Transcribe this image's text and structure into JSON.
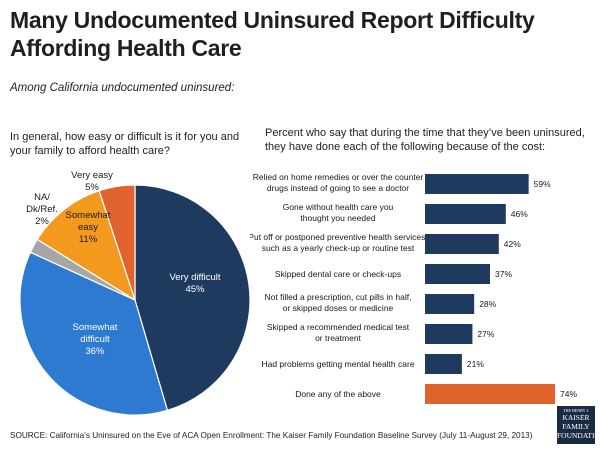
{
  "title": "Many Undocumented Uninsured Report Difficulty Affording Health Care",
  "subtitle": "Among California undocumented uninsured:",
  "source": "SOURCE: California’s Uninsured on the Eve of ACA Open Enrollment: The Kaiser Family Foundation Baseline Survey (July 11-August 29, 2013)",
  "logo": {
    "line0": "THE HENRY J.",
    "line1": "KAISER",
    "line2": "FAMILY",
    "line3": "FOUNDATION"
  },
  "colors": {
    "dark": "#1e3a5f",
    "orange": "#e0632e",
    "gold": "#f39a1e",
    "gray": "#a6a6a6",
    "blue": "#2e7ad1"
  },
  "chart_data": [
    {
      "type": "pie",
      "title": "In general, how easy or difficult is it for you and your family to afford health care?",
      "slices": [
        {
          "label": "Very difficult",
          "value": 45,
          "display": "45%",
          "color": "#1e3a5f"
        },
        {
          "label": "Somewhat difficult",
          "value": 36,
          "display": "36%",
          "color": "#2e7ad1"
        },
        {
          "label": "NA/ Dk/Ref.",
          "value": 2,
          "display": "2%",
          "color": "#a6a6a6"
        },
        {
          "label": "Somewhat easy",
          "value": 11,
          "display": "11%",
          "color": "#f39a1e"
        },
        {
          "label": "Very easy",
          "value": 5,
          "display": "5%",
          "color": "#e0632e"
        }
      ]
    },
    {
      "type": "bar",
      "orientation": "horizontal",
      "title": "Percent who say that during the time that they’ve been uninsured, they have done each of the following because of the cost:",
      "xlim": [
        0,
        100
      ],
      "categories": [
        "Relied on home remedies or over the counter drugs instead of going to see a doctor",
        "Gone without health care you thought you needed",
        "Put off or postponed preventive health services, such as a yearly check-up or routine test",
        "Skipped dental care or check-ups",
        "Not filled a prescription, cut pills in half, or skipped doses or medicine",
        "Skipped a recommended medical test or treatment",
        "Had problems getting mental health care",
        "Done any of the above"
      ],
      "values": [
        59,
        46,
        42,
        37,
        28,
        27,
        21,
        74
      ],
      "value_labels": [
        "59%",
        "46%",
        "42%",
        "37%",
        "28%",
        "27%",
        "21%",
        "74%"
      ],
      "bar_colors": [
        "#1e3a5f",
        "#1e3a5f",
        "#1e3a5f",
        "#1e3a5f",
        "#1e3a5f",
        "#1e3a5f",
        "#1e3a5f",
        "#e0632e"
      ]
    }
  ]
}
